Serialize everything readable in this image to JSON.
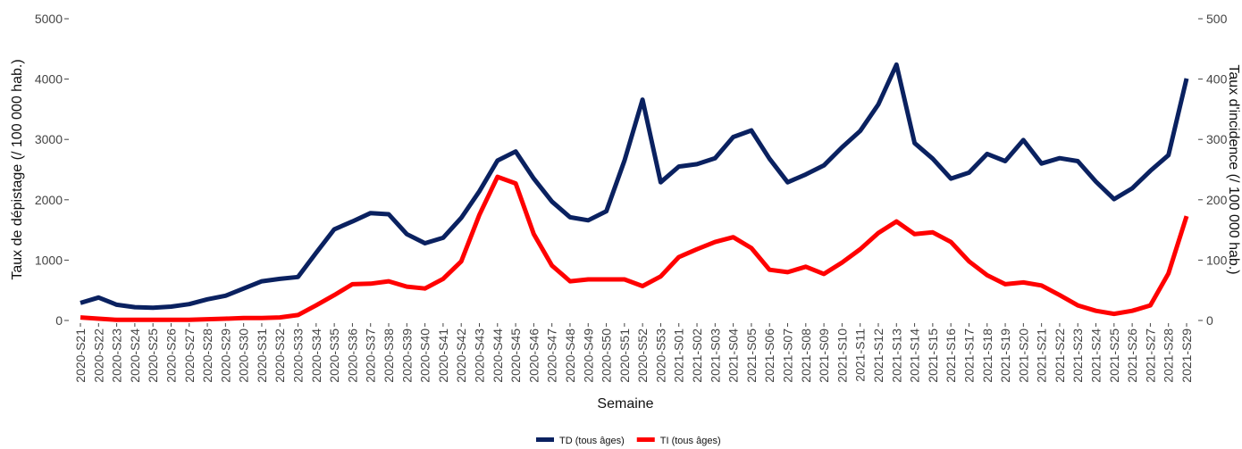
{
  "chart_data": {
    "type": "line",
    "x_label": "Semaine",
    "y_label": "Taux de dépistage (/ 100 000 hab.)",
    "y2_label": "Taux d'incidence (/ 100 000 hab.)",
    "categories": [
      "2020-S21",
      "2020-S22",
      "2020-S23",
      "2020-S24",
      "2020-S25",
      "2020-S26",
      "2020-S27",
      "2020-S28",
      "2020-S29",
      "2020-S30",
      "2020-S31",
      "2020-S32",
      "2020-S33",
      "2020-S34",
      "2020-S35",
      "2020-S36",
      "2020-S37",
      "2020-S38",
      "2020-S39",
      "2020-S40",
      "2020-S41",
      "2020-S42",
      "2020-S43",
      "2020-S44",
      "2020-S45",
      "2020-S46",
      "2020-S47",
      "2020-S48",
      "2020-S49",
      "2020-S50",
      "2020-S51",
      "2020-S52",
      "2020-S53",
      "2021-S01",
      "2021-S02",
      "2021-S03",
      "2021-S04",
      "2021-S05",
      "2021-S06",
      "2021-S07",
      "2021-S08",
      "2021-S09",
      "2021-S10",
      "2021-S11",
      "2021-S12",
      "2021-S13",
      "2021-S14",
      "2021-S15",
      "2021-S16",
      "2021-S17",
      "2021-S18",
      "2021-S19",
      "2021-S20",
      "2021-S21",
      "2021-S22",
      "2021-S23",
      "2021-S24",
      "2021-S25",
      "2021-S26",
      "2021-S27",
      "2021-S28",
      "2021-S29"
    ],
    "series": [
      {
        "name": "TD (tous âges)",
        "color": "#0a2160",
        "values": [
          290,
          380,
          260,
          220,
          210,
          230,
          270,
          350,
          410,
          530,
          650,
          690,
          720,
          1120,
          1510,
          1640,
          1780,
          1760,
          1430,
          1280,
          1370,
          1700,
          2140,
          2650,
          2800,
          2350,
          1970,
          1710,
          1660,
          1810,
          2650,
          3660,
          2290,
          2550,
          2590,
          2690,
          3040,
          3150,
          2680,
          2290,
          2420,
          2570,
          2870,
          3140,
          3580,
          4240,
          2940,
          2680,
          2350,
          2450,
          2760,
          2640,
          2990,
          2600,
          2690,
          2640,
          2300,
          2010,
          2190,
          2480,
          2740,
          4010
        ]
      },
      {
        "name": "TI (tous âges)",
        "color": "#ff0000",
        "axis": "y2",
        "values": [
          5,
          3,
          1,
          1,
          1,
          1,
          1,
          2,
          3,
          4,
          4,
          5,
          9,
          25,
          42,
          60,
          61,
          65,
          56,
          53,
          69,
          98,
          175,
          238,
          227,
          143,
          91,
          65,
          68,
          68,
          68,
          57,
          73,
          105,
          118,
          130,
          138,
          120,
          84,
          80,
          89,
          77,
          96,
          118,
          145,
          164,
          143,
          146,
          130,
          98,
          75,
          60,
          63,
          58,
          42,
          25,
          16,
          11,
          16,
          25,
          78,
          173
        ]
      }
    ],
    "ylim": [
      0,
      5000
    ],
    "yticks": [
      0,
      1000,
      2000,
      3000,
      4000,
      5000
    ],
    "y2lim": [
      0,
      500
    ],
    "y2ticks": [
      0,
      100,
      200,
      300,
      400,
      500
    ],
    "legend": "bottom",
    "grid": false
  }
}
